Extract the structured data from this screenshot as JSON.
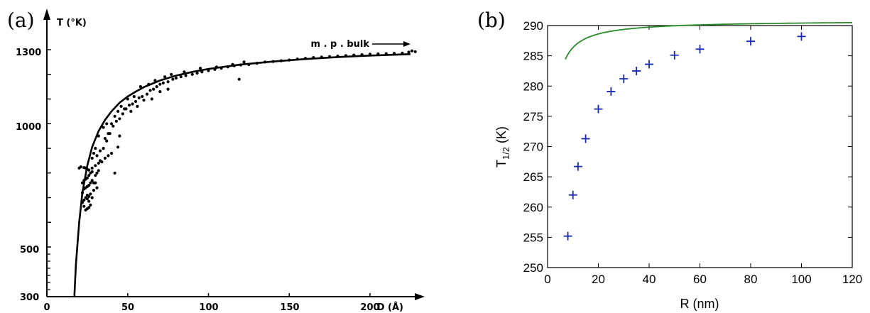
{
  "chart_data": [
    {
      "panel": "(a)",
      "type": "scatter",
      "xlabel": "D (Å)",
      "ylabel": "T (°K)",
      "xlim": [
        0,
        230
      ],
      "ylim": [
        300,
        1340
      ],
      "x_ticks": [
        "0",
        "50",
        "100",
        "150",
        "200"
      ],
      "y_ticks": [
        "300",
        "500",
        "1000",
        "1300"
      ],
      "annotation": "m . p . bulk",
      "fit_curve": {
        "name": "",
        "x": [
          17,
          18,
          20,
          22,
          25,
          28,
          32,
          36,
          40,
          45,
          50,
          55,
          60,
          70,
          80,
          90,
          100,
          120,
          140,
          160,
          180,
          200,
          225
        ],
        "y": [
          300,
          430,
          600,
          720,
          830,
          905,
          970,
          1015,
          1050,
          1085,
          1110,
          1130,
          1148,
          1175,
          1195,
          1210,
          1222,
          1240,
          1252,
          1262,
          1270,
          1276,
          1282
        ]
      },
      "points": [
        [
          23,
          822
        ],
        [
          24,
          820
        ],
        [
          25,
          815
        ],
        [
          26,
          812
        ],
        [
          28,
          820
        ],
        [
          30,
          830
        ],
        [
          32,
          840
        ],
        [
          34,
          845
        ],
        [
          36,
          860
        ],
        [
          38,
          870
        ],
        [
          40,
          880
        ],
        [
          22,
          760
        ],
        [
          23,
          770
        ],
        [
          24,
          775
        ],
        [
          25,
          780
        ],
        [
          26,
          790
        ],
        [
          27,
          800
        ],
        [
          28,
          805
        ],
        [
          29,
          760
        ],
        [
          30,
          790
        ],
        [
          31,
          800
        ],
        [
          32,
          810
        ],
        [
          22,
          720
        ],
        [
          23,
          735
        ],
        [
          24,
          740
        ],
        [
          25,
          745
        ],
        [
          26,
          750
        ],
        [
          27,
          760
        ],
        [
          28,
          770
        ],
        [
          24,
          700
        ],
        [
          25,
          710
        ],
        [
          26,
          705
        ],
        [
          27,
          715
        ],
        [
          22,
          680
        ],
        [
          23,
          690
        ],
        [
          25,
          695
        ],
        [
          26,
          685
        ],
        [
          28,
          700
        ],
        [
          30,
          760
        ],
        [
          33,
          850
        ],
        [
          35,
          900
        ],
        [
          37,
          930
        ],
        [
          39,
          960
        ],
        [
          41,
          990
        ],
        [
          43,
          1010
        ],
        [
          45,
          1020
        ],
        [
          47,
          1040
        ],
        [
          49,
          1060
        ],
        [
          51,
          1075
        ],
        [
          53,
          1080
        ],
        [
          55,
          1090
        ],
        [
          57,
          1105
        ],
        [
          59,
          1110
        ],
        [
          62,
          1120
        ],
        [
          64,
          1135
        ],
        [
          66,
          1140
        ],
        [
          68,
          1150
        ],
        [
          70,
          1160
        ],
        [
          72,
          1165
        ],
        [
          75,
          1170
        ],
        [
          78,
          1180
        ],
        [
          80,
          1185
        ],
        [
          83,
          1190
        ],
        [
          86,
          1195
        ],
        [
          90,
          1200
        ],
        [
          93,
          1205
        ],
        [
          96,
          1210
        ],
        [
          100,
          1215
        ],
        [
          104,
          1220
        ],
        [
          108,
          1225
        ],
        [
          112,
          1230
        ],
        [
          116,
          1235
        ],
        [
          120,
          1238
        ],
        [
          125,
          1240
        ],
        [
          130,
          1245
        ],
        [
          135,
          1250
        ],
        [
          140,
          1252
        ],
        [
          145,
          1255
        ],
        [
          150,
          1258
        ],
        [
          155,
          1262
        ],
        [
          160,
          1265
        ],
        [
          165,
          1268
        ],
        [
          170,
          1270
        ],
        [
          175,
          1272
        ],
        [
          180,
          1274
        ],
        [
          185,
          1276
        ],
        [
          190,
          1278
        ],
        [
          195,
          1280
        ],
        [
          200,
          1282
        ],
        [
          205,
          1283
        ],
        [
          210,
          1284
        ],
        [
          215,
          1285
        ],
        [
          220,
          1286
        ],
        [
          224,
          1290
        ],
        [
          226,
          1295
        ],
        [
          228,
          1292
        ],
        [
          36,
          940
        ],
        [
          38,
          960
        ],
        [
          40,
          1000
        ],
        [
          42,
          1030
        ],
        [
          44,
          1050
        ],
        [
          46,
          1070
        ],
        [
          50,
          1100
        ],
        [
          54,
          1110
        ],
        [
          58,
          1150
        ],
        [
          63,
          1160
        ],
        [
          67,
          1175
        ],
        [
          73,
          1190
        ],
        [
          77,
          1200
        ],
        [
          85,
          1210
        ],
        [
          95,
          1225
        ],
        [
          105,
          1230
        ],
        [
          115,
          1240
        ],
        [
          119,
          1180
        ],
        [
          122,
          1250
        ],
        [
          60,
          1095
        ],
        [
          65,
          1100
        ],
        [
          70,
          1130
        ],
        [
          75,
          1140
        ],
        [
          30,
          900
        ],
        [
          32,
          950
        ],
        [
          35,
          985
        ],
        [
          37,
          1000
        ],
        [
          45,
          950
        ],
        [
          52,
          1050
        ],
        [
          28,
          860
        ],
        [
          29,
          880
        ],
        [
          31,
          870
        ],
        [
          33,
          890
        ],
        [
          20,
          820
        ],
        [
          21,
          825
        ],
        [
          42,
          800
        ],
        [
          44,
          905
        ],
        [
          48,
          1060
        ],
        [
          56,
          1070
        ],
        [
          26,
          660
        ],
        [
          27,
          670
        ],
        [
          29,
          730
        ],
        [
          31,
          740
        ],
        [
          24,
          650
        ],
        [
          25,
          655
        ],
        [
          23,
          665
        ]
      ]
    },
    {
      "panel": "(b)",
      "type": "scatter",
      "xlabel": "R (nm)",
      "ylabel": "T",
      "ylabel_sub": "1/2",
      "ylabel_suffix": " (K)",
      "xlim": [
        0,
        120
      ],
      "ylim": [
        250,
        290
      ],
      "x_ticks": [
        0,
        20,
        40,
        60,
        80,
        100,
        120
      ],
      "y_ticks": [
        250,
        255,
        260,
        265,
        270,
        275,
        280,
        285,
        290
      ],
      "colors": {
        "curve": "#2a8a2a",
        "points": "#1a2ab0"
      },
      "points": [
        [
          8,
          255.2
        ],
        [
          10,
          262.0
        ],
        [
          12,
          266.7
        ],
        [
          15,
          271.3
        ],
        [
          20,
          276.2
        ],
        [
          25,
          279.1
        ],
        [
          30,
          281.2
        ],
        [
          35,
          282.5
        ],
        [
          40,
          283.6
        ],
        [
          50,
          285.1
        ],
        [
          60,
          286.1
        ],
        [
          80,
          287.4
        ],
        [
          100,
          288.2
        ]
      ],
      "fit_curve": {
        "name": "",
        "Tinf": 290.86,
        "k": 45.0
      }
    }
  ]
}
